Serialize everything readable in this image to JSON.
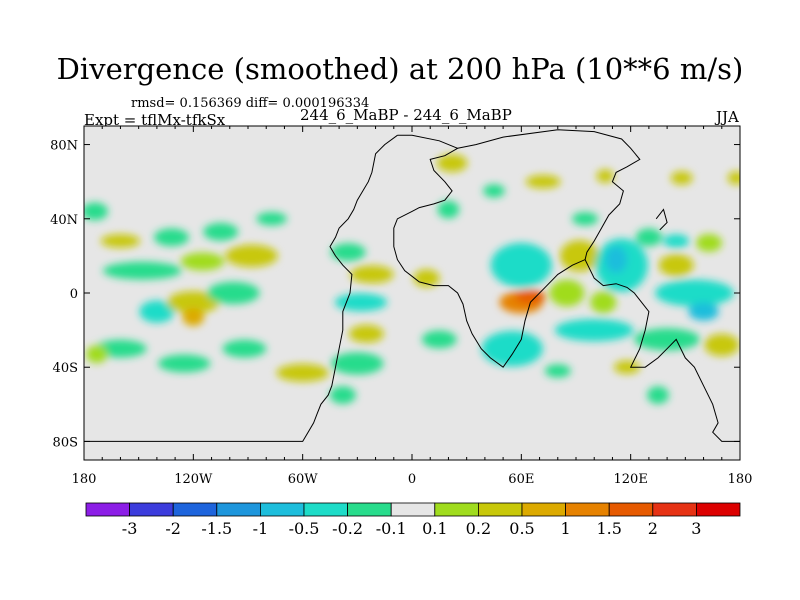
{
  "chart_data": {
    "type": "heatmap",
    "title": "Divergence (smoothed) at 200 hPa (10**6 m/s)",
    "stats_text": "rmsd= 0.156369 diff= 0.000196334",
    "experiment_label": "Expt = tflMx-tfkSx",
    "runs_label": "244_6_MaBP - 244_6_MaBP",
    "season": "JJA",
    "x_axis": {
      "range": [
        180,
        540
      ],
      "ticks": [
        180,
        240,
        300,
        360,
        420,
        480,
        540
      ],
      "tick_labels": [
        "180",
        "120W",
        "60W",
        "0",
        "60E",
        "120E",
        "180"
      ]
    },
    "y_axis": {
      "range": [
        -90,
        90
      ],
      "ticks": [
        80,
        40,
        0,
        -40,
        -80
      ],
      "tick_labels": [
        "80N",
        "40N",
        "0",
        "40S",
        "80S"
      ]
    },
    "colorbar": {
      "levels": [
        "-3",
        "-2",
        "-1.5",
        "-1",
        "-0.5",
        "-0.2",
        "-0.1",
        "0.1",
        "0.2",
        "0.5",
        "1",
        "1.5",
        "2",
        "3"
      ],
      "colors": [
        "#8c1ee6",
        "#3c3cdc",
        "#1e64dc",
        "#1e96dc",
        "#1ebedc",
        "#1edcc8",
        "#28dc8c",
        "#e6e6e6",
        "#a0dc1e",
        "#c8c80a",
        "#dcaa00",
        "#e68200",
        "#e65a00",
        "#e63214",
        "#dc0000"
      ]
    },
    "field_blobs": [
      {
        "lon": 186,
        "lat": 44,
        "sx": 6,
        "sy": 4,
        "bin": 6
      },
      {
        "lon": 200,
        "lat": 28,
        "sx": 9,
        "sy": 3,
        "bin": 9
      },
      {
        "lon": 228,
        "lat": 30,
        "sx": 8,
        "sy": 4,
        "bin": 6
      },
      {
        "lon": 255,
        "lat": 33,
        "sx": 8,
        "sy": 4,
        "bin": 6
      },
      {
        "lon": 283,
        "lat": 40,
        "sx": 7,
        "sy": 3,
        "bin": 6
      },
      {
        "lon": 272,
        "lat": 20,
        "sx": 12,
        "sy": 5,
        "bin": 9
      },
      {
        "lon": 245,
        "lat": 17,
        "sx": 10,
        "sy": 4,
        "bin": 8
      },
      {
        "lon": 212,
        "lat": 12,
        "sx": 18,
        "sy": 4,
        "bin": 6
      },
      {
        "lon": 220,
        "lat": -10,
        "sx": 8,
        "sy": 5,
        "bin": 5
      },
      {
        "lon": 240,
        "lat": -5,
        "sx": 12,
        "sy": 5,
        "bin": 9
      },
      {
        "lon": 240,
        "lat": -13,
        "sx": 5,
        "sy": 4,
        "bin": 10
      },
      {
        "lon": 262,
        "lat": 0,
        "sx": 12,
        "sy": 5,
        "bin": 6
      },
      {
        "lon": 200,
        "lat": -30,
        "sx": 12,
        "sy": 4,
        "bin": 6
      },
      {
        "lon": 187,
        "lat": -33,
        "sx": 5,
        "sy": 4,
        "bin": 8
      },
      {
        "lon": 235,
        "lat": -38,
        "sx": 12,
        "sy": 4,
        "bin": 6
      },
      {
        "lon": 268,
        "lat": -30,
        "sx": 10,
        "sy": 4,
        "bin": 6
      },
      {
        "lon": 300,
        "lat": -43,
        "sx": 12,
        "sy": 4,
        "bin": 9
      },
      {
        "lon": 330,
        "lat": -38,
        "sx": 12,
        "sy": 5,
        "bin": 6
      },
      {
        "lon": 322,
        "lat": -55,
        "sx": 6,
        "sy": 4,
        "bin": 6
      },
      {
        "lon": 338,
        "lat": 10,
        "sx": 10,
        "sy": 4,
        "bin": 9
      },
      {
        "lon": 332,
        "lat": -5,
        "sx": 12,
        "sy": 4,
        "bin": 5
      },
      {
        "lon": 325,
        "lat": 22,
        "sx": 8,
        "sy": 4,
        "bin": 6
      },
      {
        "lon": 335,
        "lat": -22,
        "sx": 8,
        "sy": 4,
        "bin": 9
      },
      {
        "lon": 368,
        "lat": 8,
        "sx": 6,
        "sy": 4,
        "bin": 9
      },
      {
        "lon": 375,
        "lat": -25,
        "sx": 8,
        "sy": 4,
        "bin": 6
      },
      {
        "lon": 382,
        "lat": 70,
        "sx": 7,
        "sy": 4,
        "bin": 9
      },
      {
        "lon": 380,
        "lat": 45,
        "sx": 5,
        "sy": 4,
        "bin": 6
      },
      {
        "lon": 420,
        "lat": 15,
        "sx": 14,
        "sy": 10,
        "bin": 5
      },
      {
        "lon": 420,
        "lat": -5,
        "sx": 10,
        "sy": 5,
        "bin": 11
      },
      {
        "lon": 425,
        "lat": -2,
        "sx": 7,
        "sy": 3,
        "bin": 12
      },
      {
        "lon": 415,
        "lat": -30,
        "sx": 14,
        "sy": 8,
        "bin": 5
      },
      {
        "lon": 452,
        "lat": 20,
        "sx": 9,
        "sy": 7,
        "bin": 9
      },
      {
        "lon": 445,
        "lat": 0,
        "sx": 8,
        "sy": 6,
        "bin": 8
      },
      {
        "lon": 475,
        "lat": 15,
        "sx": 12,
        "sy": 12,
        "bin": 5
      },
      {
        "lon": 472,
        "lat": 18,
        "sx": 5,
        "sy": 6,
        "bin": 4
      },
      {
        "lon": 460,
        "lat": -20,
        "sx": 18,
        "sy": 5,
        "bin": 5
      },
      {
        "lon": 465,
        "lat": -5,
        "sx": 6,
        "sy": 5,
        "bin": 8
      },
      {
        "lon": 490,
        "lat": 30,
        "sx": 6,
        "sy": 4,
        "bin": 6
      },
      {
        "lon": 505,
        "lat": 15,
        "sx": 8,
        "sy": 5,
        "bin": 9
      },
      {
        "lon": 515,
        "lat": 0,
        "sx": 18,
        "sy": 6,
        "bin": 5
      },
      {
        "lon": 520,
        "lat": -10,
        "sx": 7,
        "sy": 4,
        "bin": 4
      },
      {
        "lon": 500,
        "lat": -25,
        "sx": 15,
        "sy": 5,
        "bin": 6
      },
      {
        "lon": 530,
        "lat": -28,
        "sx": 8,
        "sy": 5,
        "bin": 9
      },
      {
        "lon": 505,
        "lat": 28,
        "sx": 6,
        "sy": 3,
        "bin": 5
      },
      {
        "lon": 495,
        "lat": -55,
        "sx": 5,
        "sy": 4,
        "bin": 6
      },
      {
        "lon": 523,
        "lat": 27,
        "sx": 6,
        "sy": 4,
        "bin": 8
      },
      {
        "lon": 478,
        "lat": -40,
        "sx": 6,
        "sy": 3,
        "bin": 9
      },
      {
        "lon": 440,
        "lat": -42,
        "sx": 6,
        "sy": 3,
        "bin": 6
      },
      {
        "lon": 455,
        "lat": 40,
        "sx": 6,
        "sy": 3,
        "bin": 6
      },
      {
        "lon": 432,
        "lat": 60,
        "sx": 8,
        "sy": 3,
        "bin": 9
      },
      {
        "lon": 405,
        "lat": 55,
        "sx": 5,
        "sy": 3,
        "bin": 6
      },
      {
        "lon": 466,
        "lat": 63,
        "sx": 4,
        "sy": 3,
        "bin": 9
      },
      {
        "lon": 508,
        "lat": 62,
        "sx": 5,
        "sy": 3,
        "bin": 9
      },
      {
        "lon": 538,
        "lat": 62,
        "sx": 4,
        "sy": 3,
        "bin": 9
      }
    ],
    "continents": [
      {
        "name": "americas",
        "lonlat": [
          [
            352,
            85
          ],
          [
            345,
            80
          ],
          [
            340,
            75
          ],
          [
            338,
            65
          ],
          [
            336,
            60
          ],
          [
            330,
            50
          ],
          [
            328,
            45
          ],
          [
            325,
            40
          ],
          [
            320,
            35
          ],
          [
            318,
            30
          ],
          [
            315,
            25
          ],
          [
            318,
            20
          ],
          [
            322,
            15
          ],
          [
            327,
            10
          ],
          [
            326,
            0
          ],
          [
            324,
            -5
          ],
          [
            322,
            -10
          ],
          [
            322,
            -20
          ],
          [
            320,
            -30
          ],
          [
            318,
            -40
          ],
          [
            316,
            -50
          ],
          [
            314,
            -55
          ],
          [
            310,
            -60
          ],
          [
            308,
            -65
          ],
          [
            306,
            -70
          ],
          [
            303,
            -75
          ],
          [
            300,
            -80
          ],
          [
            180,
            -80
          ]
        ]
      },
      {
        "name": "eurasia-africa",
        "lonlat": [
          [
            352,
            85
          ],
          [
            360,
            85
          ],
          [
            375,
            82
          ],
          [
            385,
            78
          ],
          [
            378,
            74
          ],
          [
            370,
            72
          ],
          [
            372,
            66
          ],
          [
            378,
            60
          ],
          [
            382,
            55
          ],
          [
            378,
            50
          ],
          [
            372,
            48
          ],
          [
            364,
            46
          ],
          [
            360,
            44
          ],
          [
            352,
            40
          ],
          [
            350,
            35
          ],
          [
            350,
            25
          ],
          [
            352,
            18
          ],
          [
            356,
            12
          ],
          [
            364,
            6
          ],
          [
            372,
            4
          ],
          [
            380,
            4
          ],
          [
            385,
            0
          ],
          [
            388,
            -6
          ],
          [
            390,
            -15
          ],
          [
            393,
            -22
          ],
          [
            398,
            -30
          ],
          [
            403,
            -35
          ],
          [
            410,
            -40
          ],
          [
            415,
            -33
          ],
          [
            420,
            -25
          ],
          [
            422,
            -15
          ],
          [
            425,
            -5
          ],
          [
            432,
            2
          ],
          [
            440,
            10
          ],
          [
            448,
            15
          ],
          [
            455,
            18
          ],
          [
            460,
            8
          ],
          [
            465,
            4
          ],
          [
            472,
            5
          ],
          [
            478,
            3
          ],
          [
            482,
            0
          ],
          [
            486,
            -5
          ],
          [
            490,
            -10
          ],
          [
            488,
            -20
          ],
          [
            485,
            -30
          ],
          [
            480,
            -40
          ],
          [
            488,
            -40
          ],
          [
            495,
            -35
          ],
          [
            500,
            -30
          ],
          [
            505,
            -25
          ],
          [
            510,
            -35
          ],
          [
            515,
            -40
          ],
          [
            520,
            -50
          ],
          [
            525,
            -60
          ],
          [
            528,
            -70
          ],
          [
            525,
            -75
          ],
          [
            530,
            -80
          ],
          [
            540,
            -80
          ]
        ]
      },
      {
        "name": "asia-east",
        "lonlat": [
          [
            385,
            78
          ],
          [
            395,
            80
          ],
          [
            410,
            84
          ],
          [
            440,
            88
          ],
          [
            460,
            87
          ],
          [
            475,
            83
          ],
          [
            480,
            78
          ],
          [
            485,
            72
          ],
          [
            478,
            68
          ],
          [
            472,
            65
          ],
          [
            470,
            60
          ],
          [
            476,
            55
          ],
          [
            474,
            48
          ],
          [
            468,
            42
          ],
          [
            464,
            35
          ],
          [
            460,
            28
          ],
          [
            456,
            22
          ],
          [
            455,
            18
          ]
        ]
      },
      {
        "name": "japan",
        "lonlat": [
          [
            494,
            40
          ],
          [
            498,
            45
          ],
          [
            500,
            38
          ],
          [
            496,
            34
          ]
        ]
      }
    ]
  }
}
